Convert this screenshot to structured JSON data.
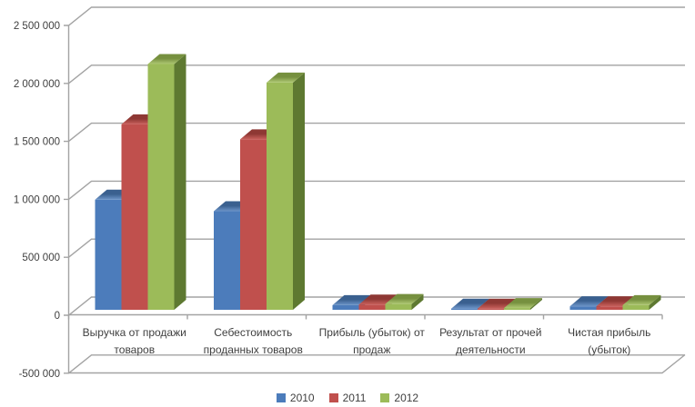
{
  "chart_data": {
    "type": "bar",
    "style": "3d-clustered-column",
    "title": "",
    "xlabel": "",
    "ylabel": "",
    "grid": true,
    "background": "#FFFFFF",
    "categories": [
      {
        "label": "Выручка от продажи товаров",
        "lines": [
          "Выручка от продажи",
          "товаров"
        ]
      },
      {
        "label": "Себестоимость проданных товаров",
        "lines": [
          "Себестоимость",
          "проданных товаров"
        ]
      },
      {
        "label": "Прибыль (убыток) от продаж",
        "lines": [
          "Прибыль (убыток) от",
          "продаж"
        ]
      },
      {
        "label": "Результат от прочей деятельности",
        "lines": [
          "Результат от прочей",
          "деятельности"
        ]
      },
      {
        "label": "Чистая прибыль (убыток)",
        "lines": [
          "Чистая прибыль",
          "(убыток)"
        ]
      }
    ],
    "series": [
      {
        "name": "2010",
        "color": "#4C7CBB",
        "color_top_light": "#6C94C8",
        "color_top_dark": "#3A608F",
        "color_side": "#2E4E75",
        "values": [
          950000,
          850000,
          40000,
          10000,
          30000
        ]
      },
      {
        "name": "2011",
        "color": "#C0504D",
        "color_top_light": "#C9605C",
        "color_top_dark": "#8E3834",
        "color_side": "#7A2F2D",
        "values": [
          1600000,
          1470000,
          45000,
          10000,
          30000
        ]
      },
      {
        "name": "2012",
        "color": "#9CBB59",
        "color_top_light": "#AFC873",
        "color_top_dark": "#76903F",
        "color_side": "#5E7931",
        "values": [
          2120000,
          1960000,
          50000,
          15000,
          40000
        ]
      }
    ],
    "y_axis": {
      "min": -500000,
      "max": 2500000,
      "step": 500000,
      "ticks": [
        {
          "value": 2500000,
          "label": "2 500 000"
        },
        {
          "value": 2000000,
          "label": "2 000 000"
        },
        {
          "value": 1500000,
          "label": "1 500 000"
        },
        {
          "value": 1000000,
          "label": "1 000 000"
        },
        {
          "value": 500000,
          "label": "500 000"
        },
        {
          "value": 0,
          "label": "0"
        },
        {
          "value": -500000,
          "label": "-500 000"
        }
      ]
    },
    "legend": {
      "position": "bottom",
      "entries": [
        "2010",
        "2011",
        "2012"
      ]
    },
    "colors": {
      "gridline": "#A3A3A3",
      "axis_line": "#A3A3A3",
      "axis_text": "#3F3F3F"
    }
  }
}
